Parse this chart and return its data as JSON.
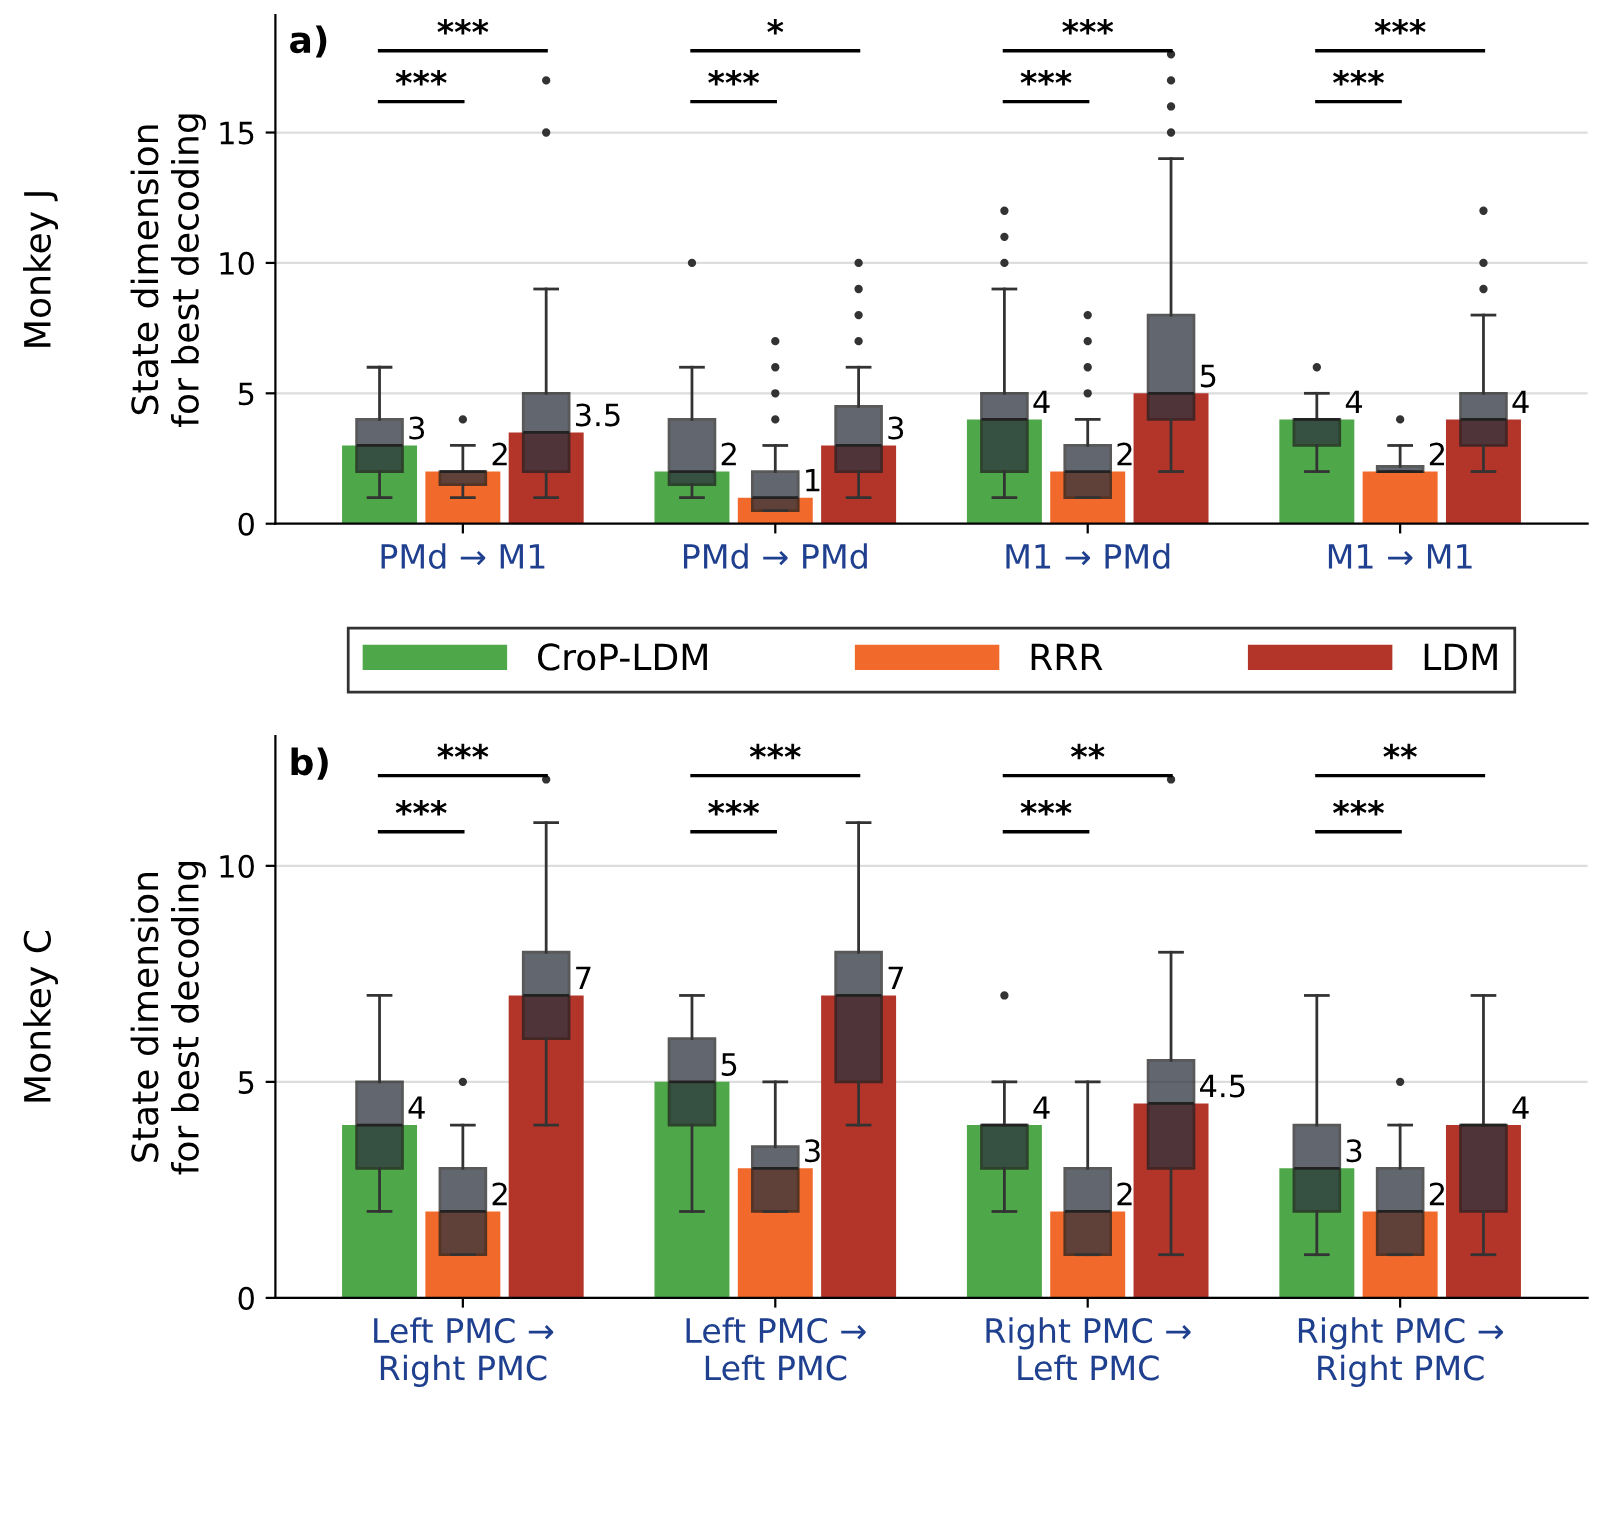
{
  "chart_data": [
    {
      "type": "bar",
      "title": "a)",
      "subtitle": "Monkey J",
      "ylabel": "State dimension\nfor best decoding",
      "categories": [
        "PMd → M1",
        "PMd → PMd",
        "M1 → PMd",
        "M1 → M1"
      ],
      "ylim": [
        0,
        19.5
      ],
      "yticks": [
        0,
        5,
        10,
        15
      ],
      "grid": "y",
      "legend": "bottom",
      "data_labels": true,
      "series": [
        {
          "name": "CroP-LDM",
          "color": "#4ea84a",
          "values": [
            3,
            2,
            4,
            4
          ]
        },
        {
          "name": "RRR",
          "color": "#f26a2b",
          "values": [
            2,
            1,
            2,
            2
          ]
        },
        {
          "name": "LDM",
          "color": "#b3352a",
          "values": [
            3.5,
            3,
            5,
            4
          ]
        },
        {
          "type": "box",
          "color": "#2e3440",
          "boxes": [
            {
              "low": 1,
              "q1": 2,
              "median": 3,
              "q3": 4,
              "high": 6
            },
            {
              "low": 1,
              "q1": 1.5,
              "median": 2,
              "q3": 4,
              "high": 6,
              "outliers": [
                10
              ]
            },
            {
              "low": 1,
              "q1": 2,
              "median": 4,
              "q3": 5,
              "high": 9,
              "outliers": [
                10,
                11,
                12
              ]
            },
            {
              "low": 2,
              "q1": 3,
              "median": 4,
              "q3": 4,
              "high": 5,
              "outliers": [
                6
              ]
            }
          ]
        },
        {
          "type": "box",
          "color": "#2e3440",
          "boxes": [
            {
              "low": 1,
              "q1": 1.5,
              "median": 2,
              "q3": 2,
              "high": 3,
              "outliers": [
                4
              ]
            },
            {
              "low": 0.5,
              "q1": 0.5,
              "median": 1,
              "q3": 2,
              "high": 3,
              "outliers": [
                4,
                5,
                6,
                7
              ]
            },
            {
              "low": 1,
              "q1": 1,
              "median": 2,
              "q3": 3,
              "high": 4,
              "outliers": [
                5,
                6,
                7,
                8
              ]
            },
            {
              "low": 2,
              "q1": 2,
              "median": 2,
              "q3": 2.2,
              "high": 3,
              "outliers": [
                4
              ]
            }
          ]
        },
        {
          "type": "box",
          "color": "#2e3440",
          "boxes": [
            {
              "low": 1,
              "q1": 2,
              "median": 3.5,
              "q3": 5,
              "high": 9,
              "outliers": [
                15,
                17
              ]
            },
            {
              "low": 1,
              "q1": 2,
              "median": 3,
              "q3": 4.5,
              "high": 6,
              "outliers": [
                7,
                8,
                9,
                10
              ]
            },
            {
              "low": 2,
              "q1": 4,
              "median": 5,
              "q3": 8,
              "high": 14,
              "outliers": [
                15,
                16,
                17,
                18
              ]
            },
            {
              "low": 2,
              "q1": 3,
              "median": 4,
              "q3": 5,
              "high": 8,
              "outliers": [
                9,
                10,
                12
              ]
            }
          ]
        }
      ],
      "annotations": [
        "***",
        "***",
        "*",
        "***",
        "***",
        "***",
        "***",
        "***"
      ]
    },
    {
      "type": "bar",
      "title": "b)",
      "subtitle": "Monkey C",
      "ylabel": "State dimension\nfor best decoding",
      "categories": [
        "Left PMC →\nRight PMC",
        "Left PMC →\nLeft PMC",
        "Right PMC →\nLeft PMC",
        "Right PMC →\nRight PMC"
      ],
      "ylim": [
        0,
        13
      ],
      "yticks": [
        0,
        5,
        10
      ],
      "grid": "y",
      "data_labels": true,
      "series": [
        {
          "color": "#4ea84a",
          "values": [
            4,
            5,
            4,
            3
          ]
        },
        {
          "color": "#f26a2b",
          "values": [
            2,
            3,
            2,
            2
          ]
        },
        {
          "color": "#b3352a",
          "values": [
            7,
            7,
            4.5,
            4
          ]
        },
        {
          "type": "box",
          "color": "#2e3440",
          "boxes": [
            {
              "low": 2,
              "q1": 3,
              "median": 4,
              "q3": 5,
              "high": 7
            },
            {
              "low": 2,
              "q1": 4,
              "median": 5,
              "q3": 6,
              "high": 7
            },
            {
              "low": 2,
              "q1": 3,
              "median": 4,
              "q3": 4,
              "high": 5,
              "outliers": [
                7
              ]
            },
            {
              "low": 1,
              "q1": 2,
              "median": 3,
              "q3": 4,
              "high": 7
            }
          ]
        },
        {
          "type": "box",
          "color": "#2e3440",
          "boxes": [
            {
              "low": 1,
              "q1": 1,
              "median": 2,
              "q3": 3,
              "high": 4,
              "outliers": [
                5
              ]
            },
            {
              "low": 2,
              "q1": 2,
              "median": 3,
              "q3": 3.5,
              "high": 5
            },
            {
              "low": 1,
              "q1": 1,
              "median": 2,
              "q3": 3,
              "high": 5
            },
            {
              "low": 1,
              "q1": 1,
              "median": 2,
              "q3": 3,
              "high": 4,
              "outliers": [
                5
              ]
            }
          ]
        },
        {
          "type": "box",
          "color": "#2e3440",
          "boxes": [
            {
              "low": 4,
              "q1": 6,
              "median": 7,
              "q3": 8,
              "high": 11,
              "outliers": [
                12
              ]
            },
            {
              "low": 4,
              "q1": 5,
              "median": 7,
              "q3": 8,
              "high": 11
            },
            {
              "low": 1,
              "q1": 3,
              "median": 4.5,
              "q3": 5.5,
              "high": 8,
              "outliers": [
                12
              ]
            },
            {
              "low": 1,
              "q1": 2,
              "median": 4,
              "q3": 4,
              "high": 7
            }
          ]
        }
      ],
      "annotations": [
        "***",
        "***",
        "***",
        "***",
        "**",
        "***",
        "**",
        "***"
      ]
    }
  ]
}
